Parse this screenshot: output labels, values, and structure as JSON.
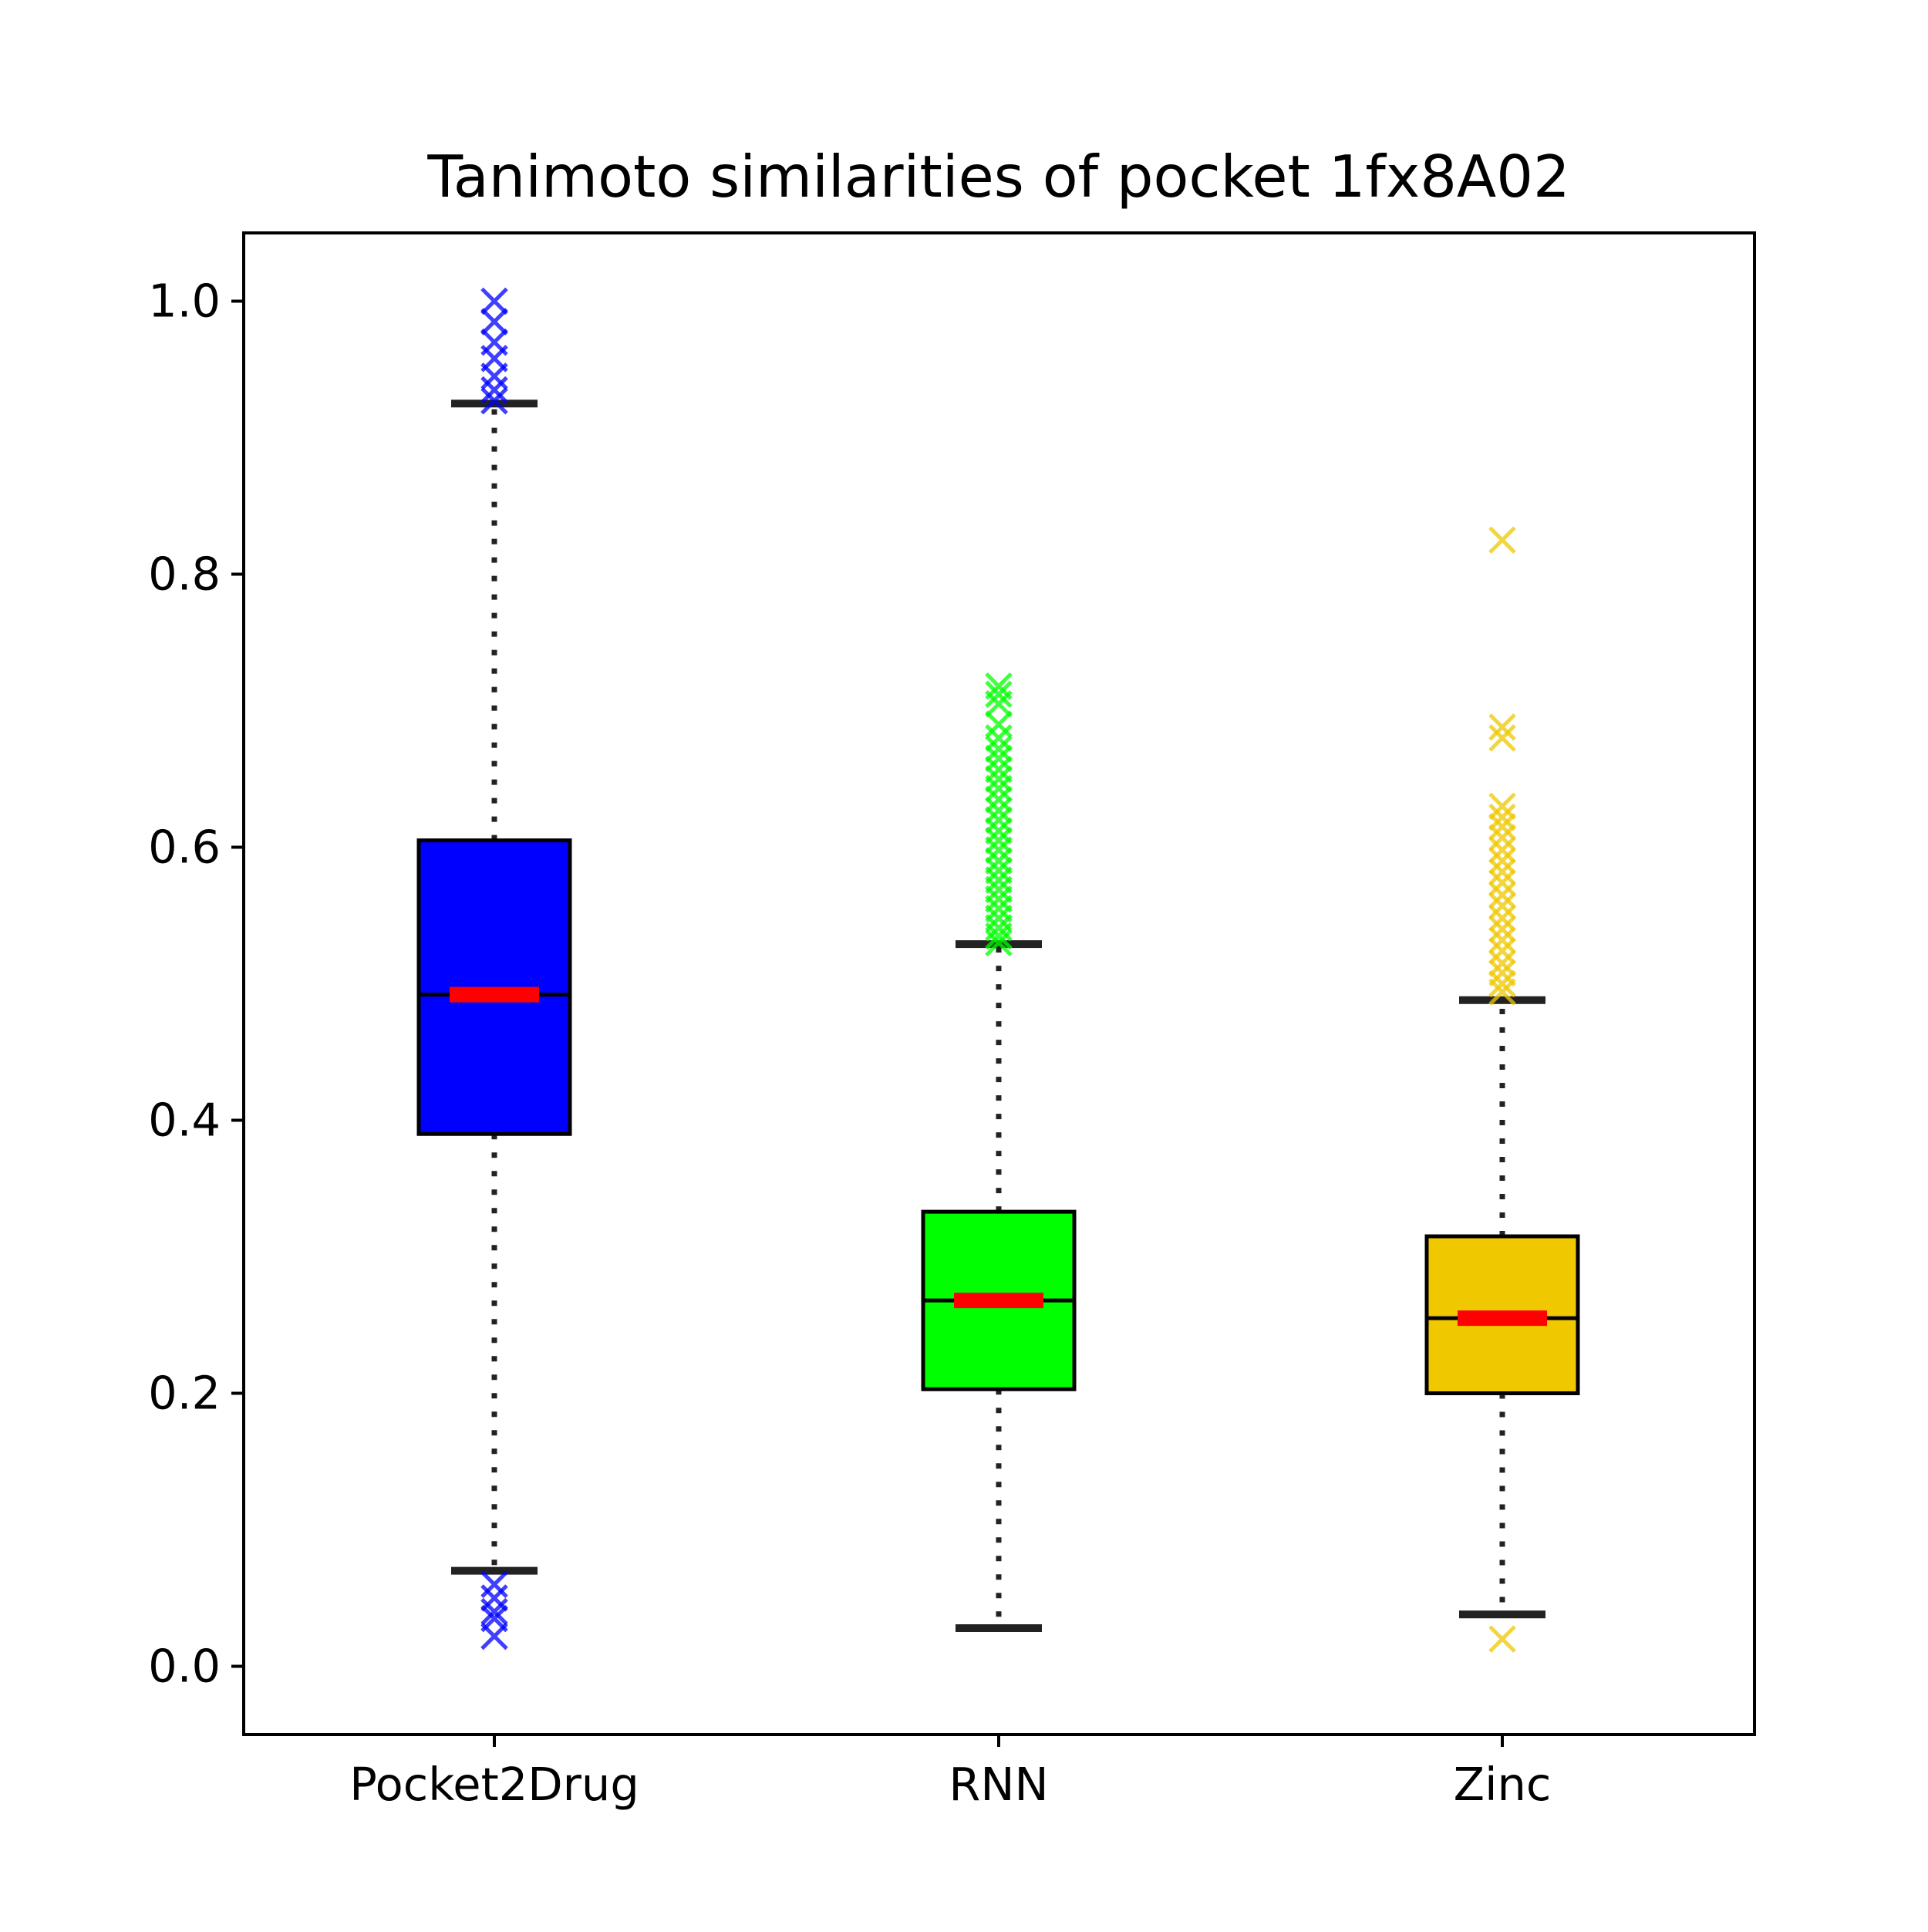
{
  "chart_data": {
    "type": "box",
    "title": "Tanimoto similarities of pocket 1fx8A02",
    "xlabel": "",
    "ylabel": "",
    "ylim": [
      -0.05,
      1.05
    ],
    "y_ticks": [
      0.0,
      0.2,
      0.4,
      0.6,
      0.8,
      1.0
    ],
    "y_tick_labels": [
      "0.0",
      "0.2",
      "0.4",
      "0.6",
      "0.8",
      "1.0"
    ],
    "notched": true,
    "grid": false,
    "categories": [
      "Pocket2Drug",
      "RNN",
      "Zinc"
    ],
    "series": [
      {
        "category": "Pocket2Drug",
        "color": "#0000ff",
        "whisker_low": 0.07,
        "q1": 0.39,
        "median": 0.492,
        "q3": 0.605,
        "whisker_high": 0.925,
        "outliers": [
          1.0,
          0.985,
          0.97,
          0.958,
          0.945,
          0.935,
          0.927,
          0.06,
          0.05,
          0.04,
          0.035,
          0.022
        ]
      },
      {
        "category": "RNN",
        "color": "#00ff00",
        "whisker_low": 0.028,
        "q1": 0.203,
        "median": 0.268,
        "q3": 0.333,
        "whisker_high": 0.529,
        "outliers": [
          0.718,
          0.712,
          0.705,
          0.69,
          0.68,
          0.672,
          0.665,
          0.657,
          0.65,
          0.643,
          0.635,
          0.627,
          0.62,
          0.612,
          0.605,
          0.598,
          0.59,
          0.583,
          0.576,
          0.569,
          0.562,
          0.555,
          0.548,
          0.541,
          0.535,
          0.53
        ]
      },
      {
        "category": "Zinc",
        "color": "#f0c800",
        "whisker_low": 0.038,
        "q1": 0.2,
        "median": 0.255,
        "q3": 0.315,
        "whisker_high": 0.488,
        "outliers": [
          0.825,
          0.688,
          0.68,
          0.63,
          0.622,
          0.615,
          0.607,
          0.598,
          0.59,
          0.582,
          0.574,
          0.565,
          0.557,
          0.548,
          0.54,
          0.532,
          0.524,
          0.515,
          0.508,
          0.5,
          0.494,
          0.02
        ]
      }
    ]
  }
}
